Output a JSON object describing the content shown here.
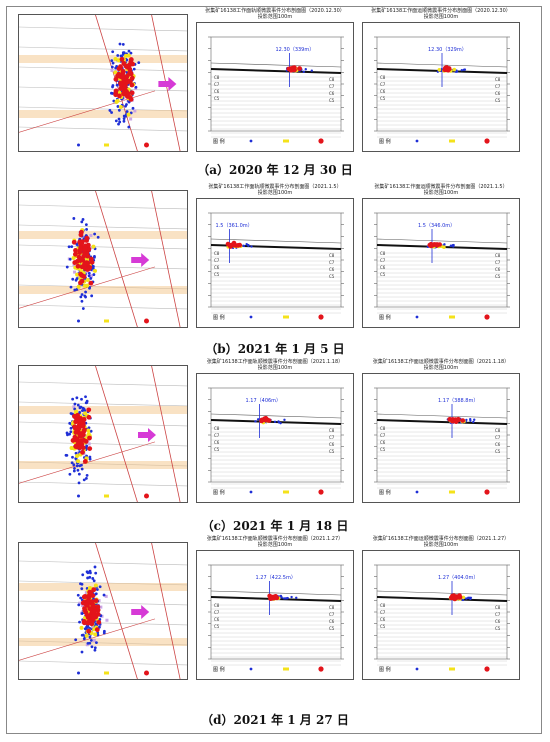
{
  "figure": {
    "rows": [
      {
        "caption": "（a）2020 年 12 月 30 日",
        "title_mid": "张集矿16138工作面轨顺微震事件分布剖面图（2020.12.30）",
        "title_mid2": "投影范围100m",
        "title_right": "张集矿16138工作面运顺微震事件分布剖面图（2020.12.30）",
        "title_right2": "投影范围100m",
        "label_mid": "12.30（339m）",
        "label_right": "12.30（329m）"
      },
      {
        "caption": "（b）2021 年 1 月 5 日",
        "title_mid": "张集矿16138工作面轨顺微震事件分布剖面图（2021.1.5）",
        "title_mid2": "投影范围100m",
        "title_right": "张集矿16138工作面运顺微震事件分布剖面图（2021.1.5）",
        "title_right2": "投影范围100m",
        "label_mid": "1.5（361.0m）",
        "label_right": "1.5（346.0m）"
      },
      {
        "caption": "（c）2021 年 1 月 18 日",
        "title_mid": "张集矿16138工作面轨顺微震事件分布剖面图（2021.1.18）",
        "title_mid2": "投影范围100m",
        "title_right": "张集矿16138工作面运顺微震事件分布剖面图（2021.1.18）",
        "title_right2": "投影范围100m",
        "label_mid": "1.17（406m）",
        "label_right": "1.17（388.8m）"
      },
      {
        "caption": "（d）2021 年 1 月 27 日",
        "title_mid": "张集矿16138工作面轨顺微震事件分布剖面图（2021.1.27）",
        "title_mid2": "投影范围100m",
        "title_right": "张集矿16138工作面运顺微震事件分布剖面图（2021.1.27）",
        "title_right2": "投影范围100m",
        "label_mid": "1.27（422.5m）",
        "label_right": "1.27（404.0m）"
      }
    ],
    "legend_title": "图 例",
    "colors": {
      "blue": "#1f2fd6",
      "yellow": "#f4e21a",
      "red": "#e3141b",
      "magenta": "#d63ad6",
      "pink": "#c9a6e6",
      "seam": "#111111"
    }
  }
}
